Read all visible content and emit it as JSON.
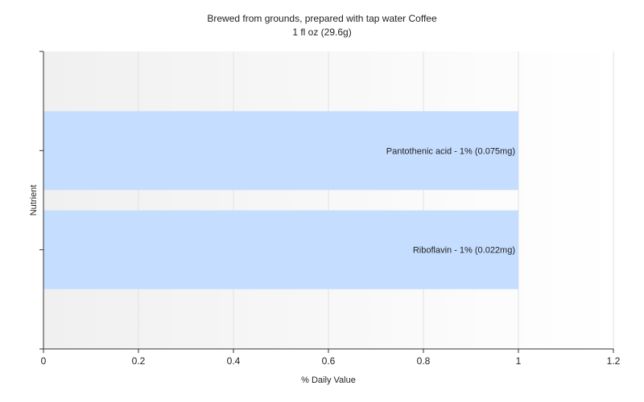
{
  "chart_data": {
    "type": "bar",
    "orientation": "horizontal",
    "title": "Brewed from grounds, prepared with tap water Coffee",
    "subtitle": "1 fl oz (29.6g)",
    "xlabel": "% Daily Value",
    "ylabel": "Nutrient",
    "xlim": [
      0,
      1.2
    ],
    "xticks": [
      "0",
      "0.2",
      "0.4",
      "0.6",
      "0.8",
      "1",
      "1.2"
    ],
    "grid": true,
    "categories": [
      "Pantothenic acid",
      "Riboflavin"
    ],
    "values": [
      1,
      1
    ],
    "labels": [
      "Pantothenic acid - 1% (0.075mg)",
      "Riboflavin - 1% (0.022mg)"
    ],
    "bar_color": "#c5ddff"
  }
}
